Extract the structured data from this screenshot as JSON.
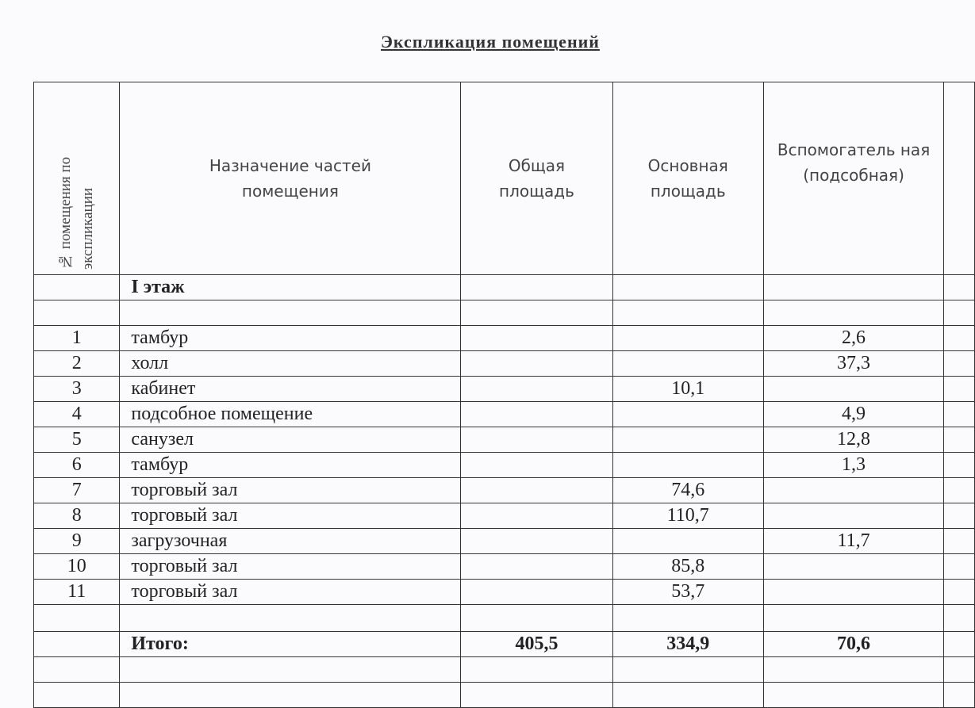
{
  "title": "Экспликация помещений",
  "headers": {
    "number": "№ помещения по экспликации",
    "purpose": "Назначение частей помещения",
    "total_area": "Общая площадь",
    "main_area": "Основная площадь",
    "auxiliary_area": "Вспомогатель ная (подсобная)"
  },
  "floor_label": "I этаж",
  "rows": [
    {
      "n": "1",
      "name": "тамбур",
      "total": "",
      "main": "",
      "aux": "2,6"
    },
    {
      "n": "2",
      "name": "холл",
      "total": "",
      "main": "",
      "aux": "37,3"
    },
    {
      "n": "3",
      "name": "кабинет",
      "total": "",
      "main": "10,1",
      "aux": ""
    },
    {
      "n": "4",
      "name": "подсобное помещение",
      "total": "",
      "main": "",
      "aux": "4,9"
    },
    {
      "n": "5",
      "name": "санузел",
      "total": "",
      "main": "",
      "aux": "12,8"
    },
    {
      "n": "6",
      "name": "тамбур",
      "total": "",
      "main": "",
      "aux": "1,3"
    },
    {
      "n": "7",
      "name": "торговый зал",
      "total": "",
      "main": "74,6",
      "aux": ""
    },
    {
      "n": "8",
      "name": "торговый зал",
      "total": "",
      "main": "110,7",
      "aux": ""
    },
    {
      "n": "9",
      "name": "загрузочная",
      "total": "",
      "main": "",
      "aux": "11,7"
    },
    {
      "n": "10",
      "name": "торговый зал",
      "total": "",
      "main": "85,8",
      "aux": ""
    },
    {
      "n": "11",
      "name": "торговый зал",
      "total": "",
      "main": "53,7",
      "aux": ""
    }
  ],
  "totals": {
    "label": "Итого:",
    "total": "405,5",
    "main": "334,9",
    "aux": "70,6"
  }
}
